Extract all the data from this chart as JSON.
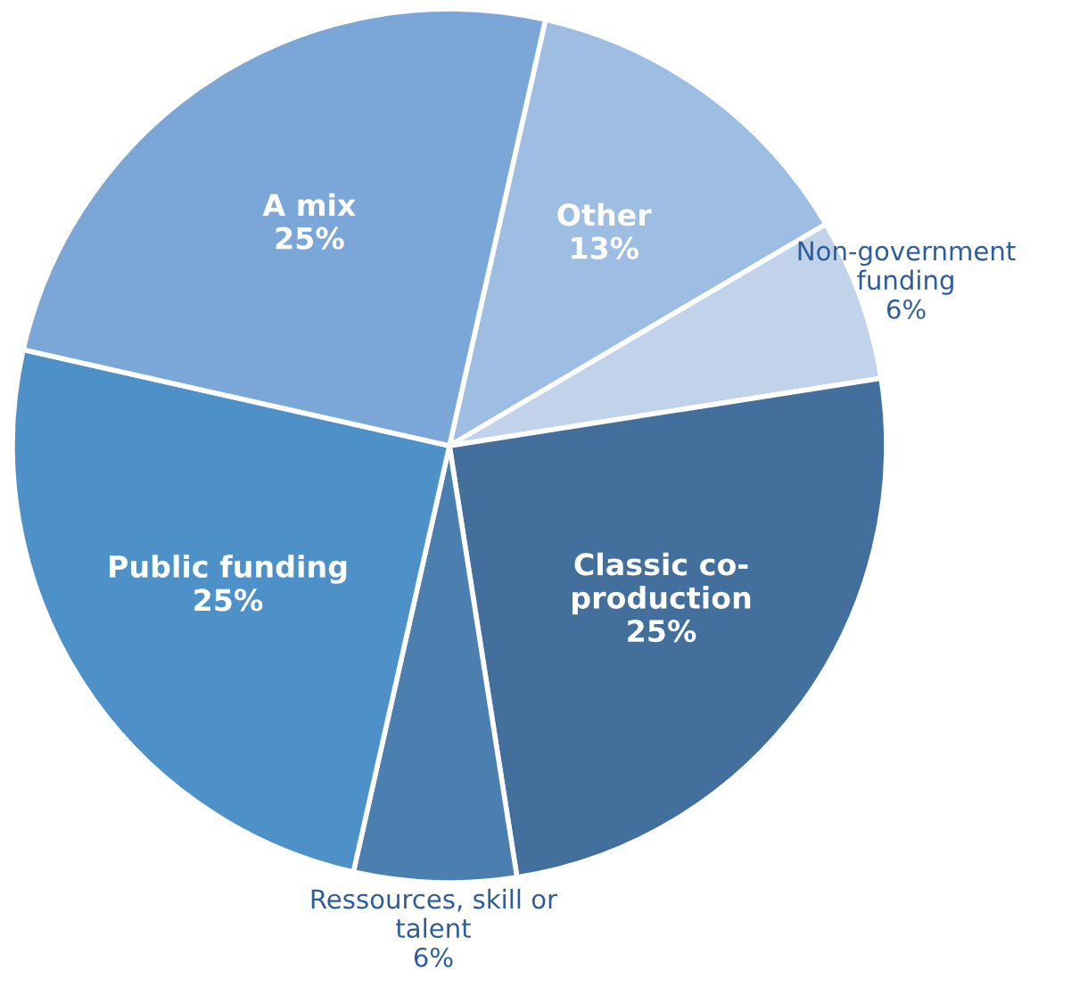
{
  "chart_data": {
    "type": "pie",
    "categories": [
      "Other",
      "Non-government\nfunding",
      "Classic co-\nproduction",
      "Ressources, skill or\ntalent",
      "Public funding",
      "A mix"
    ],
    "values": [
      13,
      6,
      25,
      6,
      25,
      25
    ],
    "colors": [
      "#9dbde3",
      "#c0d3ea",
      "#426f9b",
      "#4a7fb0",
      "#4e90c8",
      "#7ba7d8"
    ],
    "value_labels": [
      "13%",
      "6%",
      "25%",
      "6%",
      "25%",
      "25%"
    ]
  }
}
